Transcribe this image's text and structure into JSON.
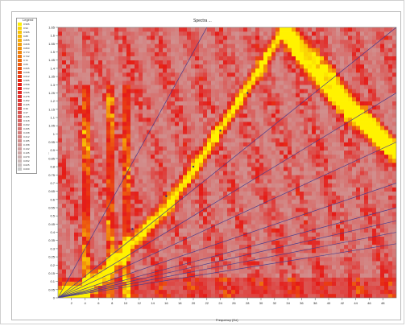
{
  "chart_data": {
    "type": "heatmap",
    "title": "Spectra ...",
    "xlabel": "Frequency (Hz)",
    "ylabel": "...",
    "legend_title": "Legend",
    "legend_values": [
      "0.996",
      "0.94",
      "0.906",
      "0.88",
      "0.855",
      "0.828",
      "0.800",
      "0.773",
      "0.742",
      "0.72",
      "0.69",
      "0.665",
      "0.638",
      "0.612",
      "0.585",
      "0.558",
      "0.532",
      "0.505",
      "0.478",
      "0.452",
      "0.425",
      "0.39",
      "0.37",
      "0.345",
      "0.318",
      "0.292",
      "0.265",
      "0.238",
      "0.212",
      "0.185",
      "0.158",
      "0.132",
      "0.105",
      "0.079",
      "0.052",
      "0.025",
      "0.000"
    ],
    "x_ticks": [
      "2",
      "4",
      "6",
      "8",
      "10",
      "12",
      "14",
      "16",
      "18",
      "20",
      "22",
      "24",
      "26",
      "28",
      "30",
      "32",
      "34",
      "36",
      "38",
      "40",
      "42",
      "44",
      "46",
      "48"
    ],
    "y_ticks": [
      "1.65",
      "1.6",
      "1.55",
      "1.5",
      "1.45",
      "1.4",
      "1.35",
      "1.3",
      "1.25",
      "1.2",
      "1.15",
      "1.1",
      "1.05",
      "1",
      "0.95",
      "0.9",
      "0.85",
      "0.8",
      "0.75",
      "0.7",
      "0.65",
      "0.6",
      "0.55",
      "0.5",
      "0.45",
      "0.4",
      "0.35",
      "0.3",
      "0.25",
      "0.2",
      "0.15",
      "0.1",
      "0.05",
      "0"
    ],
    "xlim": [
      0,
      50
    ],
    "ylim": [
      0,
      1.65
    ],
    "colorscale": {
      "low": "#c8c8c8",
      "mid": "#e51b17",
      "high": "#fff200"
    },
    "ridges": [
      {
        "points": [
          [
            0,
            0.0
          ],
          [
            4,
            0.05
          ],
          [
            8,
            0.2
          ],
          [
            12,
            0.38
          ],
          [
            16,
            0.55
          ],
          [
            20,
            0.78
          ],
          [
            24,
            1.03
          ],
          [
            28,
            1.28
          ],
          [
            31,
            1.48
          ],
          [
            33,
            1.62
          ],
          [
            36,
            1.45
          ],
          [
            40,
            1.25
          ],
          [
            44,
            1.08
          ],
          [
            48,
            0.95
          ],
          [
            50,
            0.9
          ]
        ]
      }
    ],
    "rays": [
      {
        "end": [
          22,
          1.65
        ]
      },
      {
        "end": [
          50,
          1.65
        ]
      },
      {
        "end": [
          50,
          1.25
        ]
      },
      {
        "end": [
          50,
          0.95
        ]
      },
      {
        "end": [
          50,
          0.7
        ]
      },
      {
        "end": [
          50,
          0.55
        ]
      },
      {
        "end": [
          50,
          0.47
        ]
      },
      {
        "end": [
          50,
          0.4
        ]
      },
      {
        "end": [
          50,
          0.33
        ]
      }
    ],
    "ridge_markers": [
      [
        11,
        0.42
      ],
      [
        16,
        0.62
      ],
      [
        20,
        0.8
      ],
      [
        24,
        1.02
      ],
      [
        28,
        1.25
      ]
    ],
    "vertical_bands": [
      4,
      8,
      10
    ]
  }
}
